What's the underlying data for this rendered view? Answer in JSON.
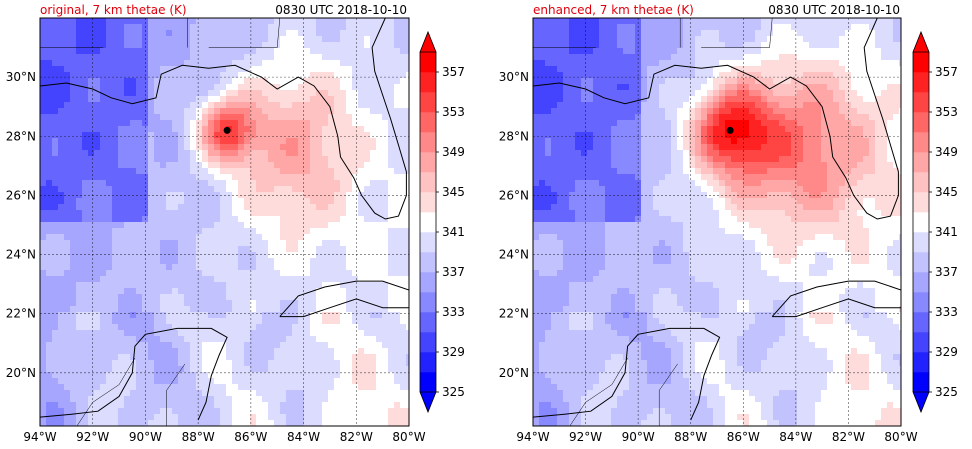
{
  "colors": {
    "title_left": "#e0000c",
    "coast": "#000000",
    "grid": "#000000",
    "storm_marker": "#000000"
  },
  "chart_data": [
    {
      "type": "heatmap",
      "title": "original, 7 km thetae (K)",
      "title_right": "0830 UTC 2018-10-10",
      "xlabel": "",
      "ylabel": "",
      "x_ticks": [
        "94°W",
        "92°W",
        "90°W",
        "88°W",
        "86°W",
        "84°W",
        "82°W",
        "80°W"
      ],
      "y_ticks": [
        "20°N",
        "22°N",
        "24°N",
        "26°N",
        "28°N",
        "30°N"
      ],
      "xlim": [
        -94,
        -80
      ],
      "ylim": [
        18.2,
        32
      ],
      "grid": true,
      "storm_center": {
        "lon": -86.9,
        "lat": 28.2
      },
      "colorbar": {
        "levels": [
          325,
          327,
          329,
          331,
          333,
          335,
          337,
          339,
          341,
          343,
          345,
          347,
          349,
          351,
          353,
          355,
          357,
          359
        ],
        "tick_labels": [
          "325",
          "329",
          "333",
          "337",
          "341",
          "345",
          "349",
          "353",
          "357"
        ],
        "extend": "both"
      }
    },
    {
      "type": "heatmap",
      "title": "enhanced, 7 km thetae (K)",
      "title_right": "0830 UTC 2018-10-10",
      "xlabel": "",
      "ylabel": "",
      "x_ticks": [
        "94°W",
        "92°W",
        "90°W",
        "88°W",
        "86°W",
        "84°W",
        "82°W",
        "80°W"
      ],
      "y_ticks": [
        "20°N",
        "22°N",
        "24°N",
        "26°N",
        "28°N",
        "30°N"
      ],
      "xlim": [
        -94,
        -80
      ],
      "ylim": [
        18.2,
        32
      ],
      "grid": true,
      "storm_center": {
        "lon": -86.5,
        "lat": 28.2
      },
      "colorbar": {
        "levels": [
          325,
          327,
          329,
          331,
          333,
          335,
          337,
          339,
          341,
          343,
          345,
          347,
          349,
          351,
          353,
          355,
          357,
          359
        ],
        "tick_labels": [
          "325",
          "329",
          "333",
          "337",
          "341",
          "345",
          "349",
          "353",
          "357"
        ],
        "extend": "both"
      }
    }
  ]
}
